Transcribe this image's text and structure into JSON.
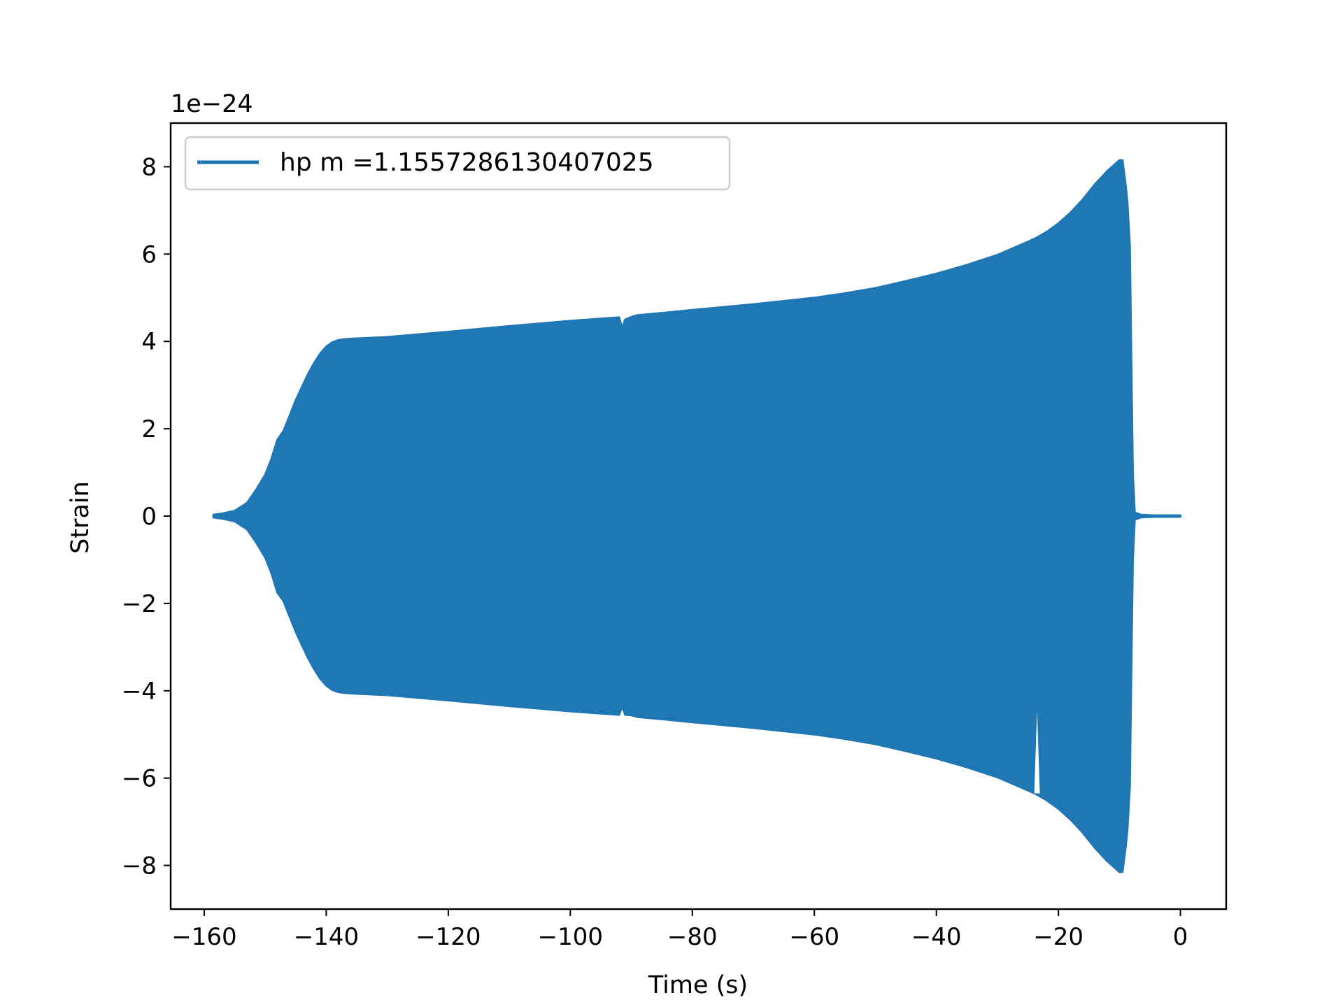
{
  "chart_data": {
    "type": "area",
    "xlabel": "Time (s)",
    "ylabel": "Strain",
    "y_scale_label": "1e−24",
    "xlim": [
      -165.5,
      7.5
    ],
    "ylim": [
      -9,
      9
    ],
    "x_ticks": [
      -160,
      -140,
      -120,
      -100,
      -80,
      -60,
      -40,
      -20,
      0
    ],
    "x_tick_labels": [
      "−160",
      "−140",
      "−120",
      "−100",
      "−80",
      "−60",
      "−40",
      "−20",
      "0"
    ],
    "y_ticks": [
      8,
      6,
      4,
      2,
      0,
      -2,
      -4,
      -6,
      -8
    ],
    "y_tick_labels": [
      "8",
      "6",
      "4",
      "2",
      "0",
      "−2",
      "−4",
      "−6",
      "−8"
    ],
    "grid": false,
    "legend_position": "top-left",
    "series": [
      {
        "name": "hp m =1.1557286130407025",
        "color": "#1f77b4",
        "x": [
          -158.5,
          -157,
          -155,
          -153,
          -151.5,
          -150,
          -149,
          -148,
          -147,
          -146,
          -145,
          -144,
          -143,
          -142,
          -141,
          -140,
          -139,
          -138,
          -137,
          -136,
          -130,
          -120,
          -110,
          -100,
          -95,
          -92,
          -91.5,
          -91,
          -90,
          -89,
          -85,
          -80,
          -70,
          -60,
          -55,
          -50,
          -45,
          -40,
          -35,
          -30,
          -25,
          -23.5,
          -22,
          -20,
          -18,
          -16,
          -14,
          -12,
          -10,
          -9.5,
          -9,
          -8.7,
          -8.3,
          -8.0,
          -7.8,
          -7.5,
          -6.5,
          -5,
          -3,
          -1,
          0
        ],
        "upper": [
          0.03,
          0.06,
          0.12,
          0.3,
          0.6,
          0.95,
          1.3,
          1.75,
          1.95,
          2.3,
          2.65,
          2.95,
          3.25,
          3.5,
          3.72,
          3.88,
          3.98,
          4.03,
          4.05,
          4.06,
          4.1,
          4.22,
          4.35,
          4.47,
          4.52,
          4.55,
          4.3,
          4.5,
          4.56,
          4.6,
          4.65,
          4.72,
          4.85,
          5.0,
          5.1,
          5.22,
          5.38,
          5.55,
          5.75,
          5.98,
          6.28,
          6.38,
          6.5,
          6.7,
          6.95,
          7.25,
          7.6,
          7.9,
          8.15,
          8.15,
          7.6,
          7.2,
          6.2,
          3.0,
          1.0,
          0.08,
          0.03,
          0.02,
          0.01,
          0.01,
          0.01
        ],
        "lower": [
          -0.03,
          -0.06,
          -0.12,
          -0.3,
          -0.6,
          -0.95,
          -1.3,
          -1.75,
          -1.95,
          -2.3,
          -2.65,
          -2.95,
          -3.25,
          -3.5,
          -3.72,
          -3.88,
          -3.98,
          -4.03,
          -4.05,
          -4.06,
          -4.1,
          -4.22,
          -4.35,
          -4.47,
          -4.52,
          -4.55,
          -4.35,
          -4.55,
          -4.56,
          -4.6,
          -4.65,
          -4.72,
          -4.85,
          -5.0,
          -5.1,
          -5.22,
          -5.38,
          -5.55,
          -5.75,
          -5.98,
          -6.28,
          -6.38,
          -6.5,
          -6.7,
          -6.95,
          -7.25,
          -7.6,
          -7.9,
          -8.15,
          -8.15,
          -7.6,
          -7.2,
          -6.2,
          -3.0,
          -1.0,
          -0.08,
          -0.03,
          -0.02,
          -0.01,
          -0.01,
          -0.01
        ],
        "notch_dips": [
          {
            "x": -23.5,
            "y": -4.45
          }
        ]
      }
    ]
  }
}
